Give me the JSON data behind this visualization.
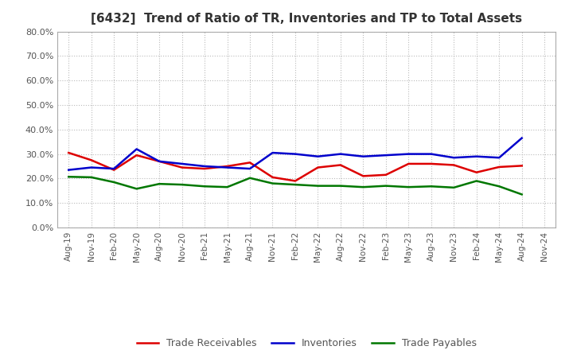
{
  "title": "[6432]  Trend of Ratio of TR, Inventories and TP to Total Assets",
  "x_labels": [
    "Aug-19",
    "Nov-19",
    "Feb-20",
    "May-20",
    "Aug-20",
    "Nov-20",
    "Feb-21",
    "May-21",
    "Aug-21",
    "Nov-21",
    "Feb-22",
    "May-22",
    "Aug-22",
    "Nov-22",
    "Feb-23",
    "May-23",
    "Aug-23",
    "Nov-23",
    "Feb-24",
    "May-24",
    "Aug-24",
    "Nov-24"
  ],
  "trade_receivables": [
    0.305,
    0.275,
    0.235,
    0.295,
    0.27,
    0.245,
    0.24,
    0.25,
    0.265,
    0.205,
    0.19,
    0.245,
    0.255,
    0.21,
    0.215,
    0.26,
    0.26,
    0.255,
    0.225,
    0.247,
    0.252,
    null
  ],
  "inventories": [
    0.235,
    0.245,
    0.24,
    0.32,
    0.27,
    0.26,
    0.25,
    0.245,
    0.24,
    0.305,
    0.3,
    0.29,
    0.3,
    0.29,
    0.295,
    0.3,
    0.3,
    0.285,
    0.29,
    0.285,
    0.365,
    null
  ],
  "trade_payables": [
    0.207,
    0.205,
    0.185,
    0.158,
    0.178,
    0.175,
    0.168,
    0.165,
    0.202,
    0.18,
    0.175,
    0.17,
    0.17,
    0.165,
    0.17,
    0.165,
    0.168,
    0.163,
    0.19,
    0.168,
    0.135,
    null
  ],
  "color_tr": "#dd0000",
  "color_inv": "#0000cc",
  "color_tp": "#007700",
  "ylim": [
    0.0,
    0.8
  ],
  "yticks": [
    0.0,
    0.1,
    0.2,
    0.3,
    0.4,
    0.5,
    0.6,
    0.7,
    0.8
  ],
  "background_color": "#ffffff",
  "grid_color": "#bbbbbb",
  "legend_labels": [
    "Trade Receivables",
    "Inventories",
    "Trade Payables"
  ],
  "title_color": "#333333",
  "tick_color": "#555555"
}
